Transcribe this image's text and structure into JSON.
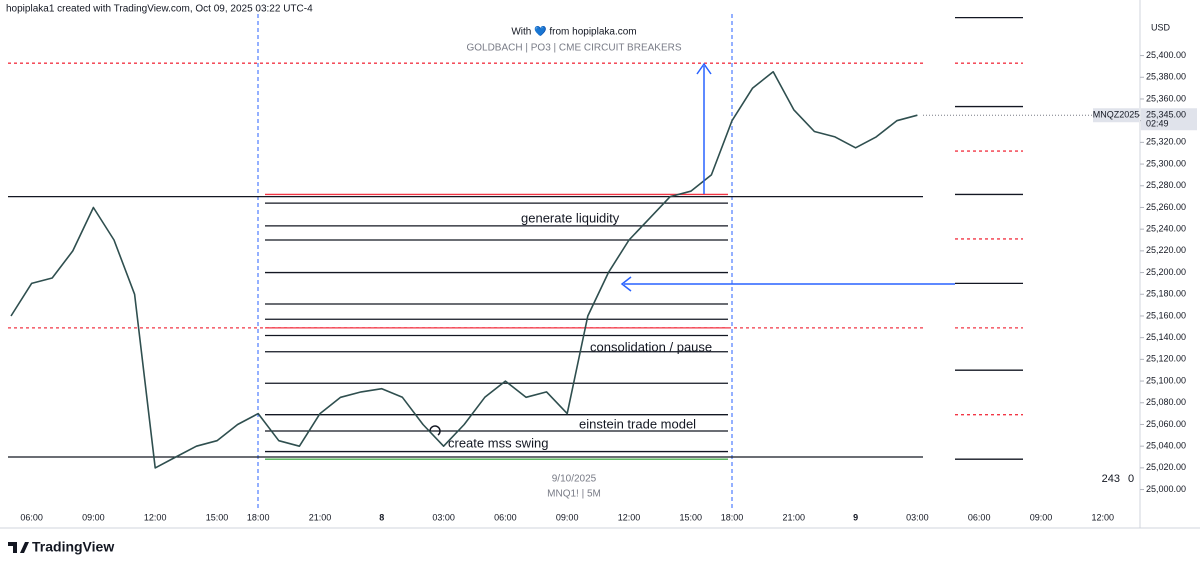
{
  "header": {
    "attribution": "hopiplaka1 created with TradingView.com, Oct 09, 2025 03:22 UTC-4",
    "credit": "With 💙 from hopiplaka.com",
    "study": "GOLDBACH | PO3 | CME CIRCUIT BREAKERS"
  },
  "chart_data": {
    "type": "line",
    "color": "#2f4f4f",
    "categories": [
      null,
      "06:00",
      null,
      null,
      "09:00",
      null,
      null,
      "12:00",
      null,
      null,
      "15:00",
      null,
      "18:00",
      null,
      null,
      "21:00",
      null,
      null,
      "8",
      null,
      null,
      "03:00",
      null,
      null,
      "06:00",
      null,
      null,
      "09:00",
      null,
      null,
      "12:00",
      null,
      null,
      "15:00",
      null,
      "18:00",
      null,
      null,
      "21:00",
      null,
      null,
      "9",
      null,
      null,
      "03:00",
      null,
      null,
      "06:00",
      null,
      null,
      "09:00",
      null,
      null,
      "12:00"
    ],
    "values": [
      25160,
      25190,
      25195,
      25220,
      25260,
      25230,
      25180,
      25020,
      25030,
      25040,
      25045,
      25060,
      25070,
      25045,
      25040,
      25070,
      25085,
      25090,
      25093,
      25085,
      25060,
      25040,
      25060,
      25085,
      25100,
      25085,
      25090,
      25070,
      25160,
      25200,
      25230,
      25250,
      25270,
      25275,
      25290,
      25340,
      25370,
      25385,
      25350,
      25330,
      25325,
      25315,
      25325,
      25340,
      25345,
      null,
      null,
      null,
      null,
      null,
      null,
      null,
      null,
      null
    ],
    "ylim": [
      24983,
      25442
    ],
    "yticks": [
      {
        "value": 25000,
        "label": "25,000.00"
      },
      {
        "value": 25020,
        "label": "25,020.00"
      },
      {
        "value": 25040,
        "label": "25,040.00"
      },
      {
        "value": 25060,
        "label": "25,060.00"
      },
      {
        "value": 25080,
        "label": "25,080.00"
      },
      {
        "value": 25100,
        "label": "25,100.00"
      },
      {
        "value": 25120,
        "label": "25,120.00"
      },
      {
        "value": 25140,
        "label": "25,140.00"
      },
      {
        "value": 25160,
        "label": "25,160.00"
      },
      {
        "value": 25180,
        "label": "25,180.00"
      },
      {
        "value": 25200,
        "label": "25,200.00"
      },
      {
        "value": 25220,
        "label": "25,220.00"
      },
      {
        "value": 25240,
        "label": "25,240.00"
      },
      {
        "value": 25260,
        "label": "25,260.00"
      },
      {
        "value": 25280,
        "label": "25,280.00"
      },
      {
        "value": 25300,
        "label": "25,300.00"
      },
      {
        "value": 25320,
        "label": "25,320.00"
      },
      {
        "value": 25340,
        "label": "25,340.00"
      },
      {
        "value": 25360,
        "label": "25,360.00"
      },
      {
        "value": 25380,
        "label": "25,380.00"
      },
      {
        "value": 25400,
        "label": "25,400.00"
      }
    ],
    "full_levels": [
      25270,
      25030
    ],
    "range_levels": [
      25264,
      25243,
      25230,
      25200,
      25171,
      25157,
      25142,
      25127,
      25098,
      25069,
      25054,
      25035
    ],
    "range_red_levels": [
      25272,
      25149
    ],
    "range_green_levels": [
      25028
    ],
    "dashed_red_levels": [
      25393,
      25149
    ],
    "right_levels": [
      25435,
      25353,
      25272,
      25190,
      25110,
      25028
    ],
    "right_dashed_levels": [
      25393,
      25312,
      25231,
      25149,
      25069
    ],
    "currency": "USD",
    "symbol": "MNQZ2025",
    "last_price": {
      "value": 25345,
      "label": "25,345.00"
    },
    "countdown": "02:49",
    "volume_labels": [
      "243",
      "0"
    ],
    "annotations": [
      "generate liquidity",
      "consolidation / pause",
      "einstein trade model",
      "create mss swing"
    ],
    "watermark": [
      "9/10/2025",
      "MNQ1! | 5M"
    ]
  },
  "footer": {
    "logo": "TradingView"
  }
}
